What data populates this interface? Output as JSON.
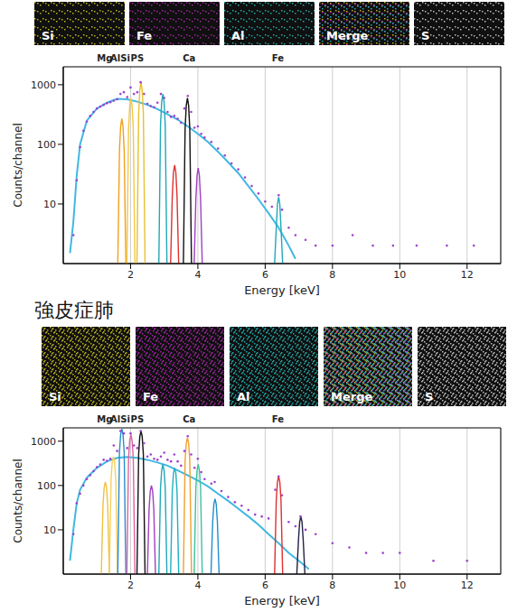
{
  "chart_data": [
    {
      "type": "line",
      "xlabel": "Energy [keV]",
      "ylabel": "Counts/channel",
      "xlim": [
        0,
        13
      ],
      "xticks": [
        2,
        4,
        6,
        8,
        10,
        12
      ],
      "ylim": [
        1,
        2000
      ],
      "yticks": [
        10,
        100,
        1000
      ],
      "log": "y",
      "grid": true,
      "maps": [
        {
          "label": "Si",
          "color": "#d8cc20"
        },
        {
          "label": "Fe",
          "color": "#b828b8"
        },
        {
          "label": "Al",
          "color": "#28c0c0"
        },
        {
          "label": "Merge",
          "colors": [
            "#d8cc20",
            "#b828b8",
            "#28c0c0"
          ]
        },
        {
          "label": "S",
          "color": "#d8d8d8"
        }
      ],
      "annotations": [
        {
          "text": "Mg",
          "x": 1.0
        },
        {
          "text": "Al",
          "x": 1.4
        },
        {
          "text": "Si",
          "x": 1.7
        },
        {
          "text": "P",
          "x": 2.0
        },
        {
          "text": "S",
          "x": 2.2
        },
        {
          "text": "Ca",
          "x": 3.55
        },
        {
          "text": "Fe",
          "x": 6.2
        }
      ],
      "series": [
        {
          "type": "scatter",
          "color": "#a040d0",
          "marker": "circle",
          "x": [
            0.3,
            0.4,
            0.5,
            0.6,
            0.7,
            0.8,
            0.9,
            1.0,
            1.1,
            1.2,
            1.3,
            1.4,
            1.5,
            1.6,
            1.7,
            1.8,
            1.9,
            2.0,
            2.1,
            2.2,
            2.3,
            2.4,
            2.5,
            2.6,
            2.7,
            2.8,
            2.9,
            3.0,
            3.1,
            3.2,
            3.3,
            3.4,
            3.5,
            3.6,
            3.7,
            3.8,
            3.9,
            4.0,
            4.1,
            4.2,
            4.4,
            4.6,
            4.8,
            5.0,
            5.2,
            5.4,
            5.6,
            5.8,
            6.0,
            6.2,
            6.4,
            6.5,
            6.7,
            6.9,
            7.2,
            7.5,
            8.0,
            8.6,
            9.2,
            9.8,
            10.5,
            11.4,
            12.2
          ],
          "values": [
            3,
            25,
            90,
            170,
            240,
            300,
            350,
            400,
            430,
            460,
            490,
            510,
            540,
            570,
            700,
            750,
            620,
            900,
            700,
            750,
            1100,
            700,
            480,
            440,
            420,
            500,
            700,
            600,
            350,
            290,
            300,
            270,
            230,
            400,
            650,
            350,
            190,
            200,
            150,
            130,
            110,
            85,
            65,
            48,
            38,
            28,
            20,
            15,
            11,
            9,
            14,
            8,
            4,
            3,
            2.5,
            2,
            2,
            3,
            2,
            2,
            2,
            2,
            2
          ]
        },
        {
          "type": "line",
          "color": "#40b8e0",
          "x": [
            0.2,
            0.3,
            0.4,
            0.5,
            0.7,
            1.0,
            1.3,
            1.6,
            1.9,
            2.2,
            2.5,
            2.8,
            3.1,
            3.4,
            3.7,
            4.0,
            4.3,
            4.6,
            4.9,
            5.2,
            5.5,
            5.8,
            6.1,
            6.4,
            6.7,
            6.9
          ],
          "values": [
            1.5,
            5,
            30,
            100,
            250,
            400,
            500,
            580,
            570,
            520,
            460,
            390,
            320,
            260,
            200,
            150,
            110,
            75,
            50,
            33,
            20,
            12,
            7,
            4,
            2,
            1.2
          ]
        },
        {
          "type": "line",
          "color": "#f0a020",
          "x": [
            1.62,
            1.67,
            1.705,
            1.74,
            1.775,
            1.81,
            1.86
          ],
          "values": [
            1,
            80,
            200,
            270,
            200,
            80,
            1
          ]
        },
        {
          "type": "line",
          "color": "#f5c842",
          "x": [
            1.89,
            1.94,
            1.975,
            2.01,
            2.045,
            2.08,
            2.13
          ],
          "values": [
            1,
            180,
            450,
            600,
            450,
            180,
            1
          ]
        },
        {
          "type": "line",
          "color": "#e8c030",
          "x": [
            2.19,
            2.24,
            2.275,
            2.31,
            2.345,
            2.38,
            2.43
          ],
          "values": [
            1,
            330,
            820,
            1100,
            820,
            330,
            1
          ]
        },
        {
          "type": "line",
          "color": "#20a8b8",
          "x": [
            2.84,
            2.89,
            2.925,
            2.96,
            2.995,
            3.03,
            3.08
          ],
          "values": [
            1,
            210,
            520,
            700,
            520,
            210,
            1
          ]
        },
        {
          "type": "line",
          "color": "#e03030",
          "x": [
            3.19,
            3.24,
            3.275,
            3.31,
            3.345,
            3.38,
            3.43
          ],
          "values": [
            1,
            14,
            34,
            45,
            34,
            14,
            1
          ]
        },
        {
          "type": "line",
          "color": "#111111",
          "x": [
            3.57,
            3.62,
            3.655,
            3.69,
            3.725,
            3.76,
            3.81
          ],
          "values": [
            1,
            180,
            450,
            600,
            450,
            180,
            1
          ]
        },
        {
          "type": "line",
          "color": "#a040c0",
          "x": [
            3.89,
            3.94,
            3.975,
            4.01,
            4.045,
            4.08,
            4.13
          ],
          "values": [
            1,
            12,
            30,
            40,
            30,
            12,
            1
          ]
        },
        {
          "type": "line",
          "color": "#20a8b8",
          "x": [
            6.28,
            6.33,
            6.365,
            6.4,
            6.435,
            6.47,
            6.52
          ],
          "values": [
            1,
            4,
            10,
            13,
            10,
            4,
            1
          ]
        }
      ]
    },
    {
      "type": "line",
      "title": "強皮症肺",
      "xlabel": "Energy [keV]",
      "ylabel": "Counts/channel",
      "xlim": [
        0,
        13
      ],
      "xticks": [
        2,
        4,
        6,
        8,
        10,
        12
      ],
      "ylim": [
        1,
        2000
      ],
      "yticks": [
        10,
        100,
        1000
      ],
      "log": "y",
      "grid": true,
      "maps": [
        {
          "label": "Si",
          "color": "#d8cc20"
        },
        {
          "label": "Fe",
          "color": "#b828b8"
        },
        {
          "label": "Al",
          "color": "#28c0c0"
        },
        {
          "label": "Merge",
          "colors": [
            "#d8cc20",
            "#b828b8",
            "#28c0c0"
          ]
        },
        {
          "label": "S",
          "color": "#d8d8d8"
        }
      ],
      "annotations": [
        {
          "text": "Mg",
          "x": 1.0
        },
        {
          "text": "Al",
          "x": 1.4
        },
        {
          "text": "Si",
          "x": 1.7
        },
        {
          "text": "P",
          "x": 2.0
        },
        {
          "text": "S",
          "x": 2.2
        },
        {
          "text": "Ca",
          "x": 3.55
        },
        {
          "text": "Fe",
          "x": 6.2
        }
      ],
      "series": [
        {
          "type": "scatter",
          "color": "#a040d0",
          "marker": "circle",
          "x": [
            0.3,
            0.4,
            0.5,
            0.6,
            0.7,
            0.8,
            0.9,
            1.0,
            1.1,
            1.2,
            1.3,
            1.4,
            1.5,
            1.6,
            1.7,
            1.8,
            1.9,
            2.0,
            2.1,
            2.2,
            2.3,
            2.4,
            2.5,
            2.6,
            2.7,
            2.8,
            2.9,
            3.0,
            3.1,
            3.2,
            3.3,
            3.4,
            3.5,
            3.6,
            3.7,
            3.8,
            3.9,
            4.0,
            4.1,
            4.2,
            4.4,
            4.5,
            4.7,
            4.9,
            5.1,
            5.3,
            5.5,
            5.7,
            5.9,
            6.1,
            6.3,
            6.4,
            6.5,
            6.7,
            6.9,
            7.05,
            7.2,
            7.5,
            8.0,
            8.5,
            9.0,
            9.5,
            10.0,
            11.0,
            12.0
          ],
          "values": [
            8,
            40,
            65,
            100,
            140,
            170,
            210,
            260,
            300,
            380,
            360,
            400,
            800,
            600,
            1700,
            1500,
            700,
            1500,
            800,
            700,
            1700,
            900,
            450,
            500,
            400,
            380,
            450,
            550,
            380,
            350,
            500,
            350,
            280,
            600,
            1300,
            500,
            250,
            400,
            200,
            140,
            110,
            120,
            75,
            55,
            42,
            35,
            28,
            22,
            20,
            18,
            80,
            160,
            60,
            15,
            12,
            20,
            10,
            8,
            5,
            4,
            3,
            3,
            3,
            2,
            2
          ]
        },
        {
          "type": "line",
          "color": "#40b8e0",
          "x": [
            0.2,
            0.3,
            0.4,
            0.5,
            0.7,
            1.0,
            1.3,
            1.6,
            1.9,
            2.2,
            2.5,
            2.8,
            3.1,
            3.4,
            3.7,
            4.0,
            4.3,
            4.6,
            4.9,
            5.2,
            5.5,
            5.8,
            6.1,
            6.4,
            6.7,
            7.0,
            7.3
          ],
          "values": [
            2,
            10,
            40,
            80,
            150,
            250,
            350,
            420,
            440,
            420,
            380,
            330,
            280,
            220,
            170,
            130,
            95,
            65,
            45,
            30,
            20,
            13,
            8,
            5,
            3,
            2,
            1.3
          ]
        },
        {
          "type": "line",
          "color": "#f0c040",
          "x": [
            1.13,
            1.18,
            1.215,
            1.25,
            1.285,
            1.32,
            1.37
          ],
          "values": [
            1,
            36,
            90,
            120,
            90,
            36,
            1
          ]
        },
        {
          "type": "line",
          "color": "#f5d060",
          "x": [
            1.37,
            1.42,
            1.455,
            1.49,
            1.525,
            1.56,
            1.61
          ],
          "values": [
            1,
            135,
            340,
            450,
            340,
            135,
            1
          ]
        },
        {
          "type": "line",
          "color": "#2a8ccf",
          "x": [
            1.62,
            1.67,
            1.705,
            1.74,
            1.775,
            1.81,
            1.86
          ],
          "values": [
            1,
            570,
            1420,
            1900,
            1420,
            570,
            1
          ]
        },
        {
          "type": "line",
          "color": "#e060a0",
          "x": [
            1.89,
            1.94,
            1.975,
            2.01,
            2.045,
            2.08,
            2.13
          ],
          "values": [
            1,
            420,
            1050,
            1400,
            1050,
            420,
            1
          ]
        },
        {
          "type": "line",
          "color": "#111111",
          "x": [
            2.19,
            2.24,
            2.275,
            2.31,
            2.345,
            2.38,
            2.43
          ],
          "values": [
            1,
            510,
            1280,
            1700,
            1280,
            510,
            1
          ]
        },
        {
          "type": "line",
          "color": "#a040c0",
          "x": [
            2.5,
            2.55,
            2.585,
            2.62,
            2.655,
            2.69,
            2.74
          ],
          "values": [
            1,
            30,
            75,
            100,
            75,
            30,
            1
          ]
        },
        {
          "type": "line",
          "color": "#20a8b8",
          "x": [
            2.84,
            2.89,
            2.925,
            2.96,
            2.995,
            3.03,
            3.08
          ],
          "values": [
            1,
            90,
            220,
            300,
            220,
            90,
            1
          ]
        },
        {
          "type": "line",
          "color": "#20b0c0",
          "x": [
            3.19,
            3.24,
            3.275,
            3.31,
            3.345,
            3.38,
            3.43
          ],
          "values": [
            1,
            75,
            190,
            250,
            190,
            75,
            1
          ]
        },
        {
          "type": "line",
          "color": "#f0a030",
          "x": [
            3.57,
            3.62,
            3.655,
            3.69,
            3.725,
            3.76,
            3.81
          ],
          "values": [
            1,
            360,
            900,
            1200,
            900,
            360,
            1
          ]
        },
        {
          "type": "line",
          "color": "#40c0a0",
          "x": [
            3.89,
            3.94,
            3.975,
            4.01,
            4.045,
            4.08,
            4.13
          ],
          "values": [
            1,
            90,
            220,
            300,
            220,
            90,
            1
          ]
        },
        {
          "type": "line",
          "color": "#2090d0",
          "x": [
            4.39,
            4.44,
            4.475,
            4.51,
            4.545,
            4.58,
            4.63
          ],
          "values": [
            1,
            15,
            38,
            50,
            38,
            15,
            1
          ]
        },
        {
          "type": "line",
          "color": "#e03030",
          "x": [
            6.28,
            6.33,
            6.365,
            6.4,
            6.435,
            6.47,
            6.52
          ],
          "values": [
            1,
            48,
            120,
            160,
            120,
            48,
            1
          ]
        },
        {
          "type": "line",
          "color": "#222244",
          "x": [
            6.94,
            6.99,
            7.025,
            7.06,
            7.095,
            7.13,
            7.18
          ],
          "values": [
            1,
            6,
            15,
            20,
            15,
            6,
            1
          ]
        }
      ]
    }
  ]
}
